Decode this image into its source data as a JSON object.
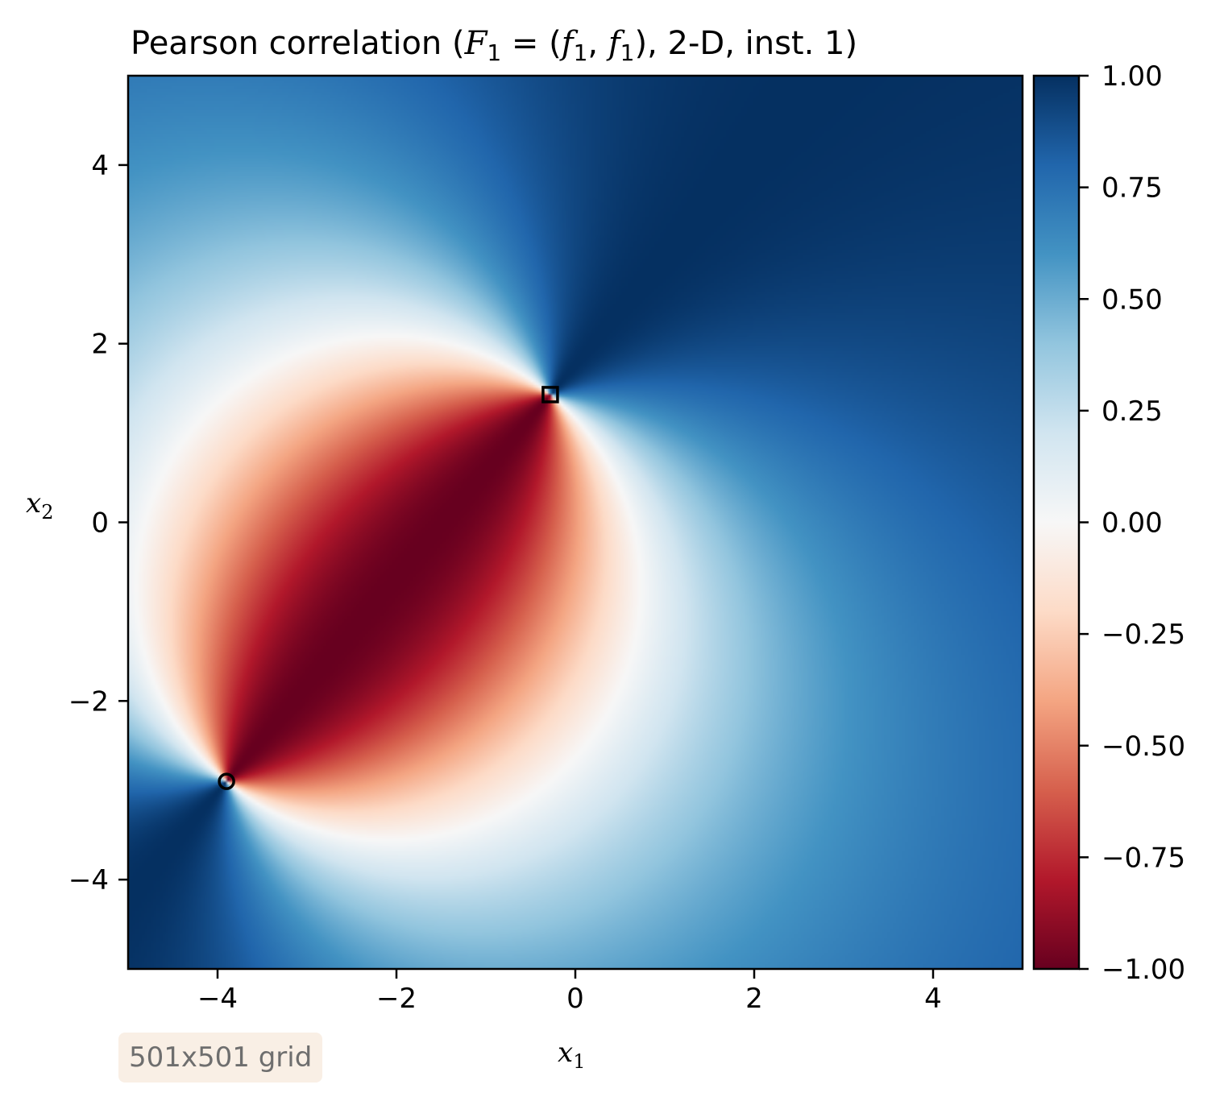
{
  "chart_data": {
    "type": "heatmap",
    "title": "Pearson correlation (F₁ = (f₁, f₁), 2-D, inst. 1)",
    "title_parts": {
      "prefix": "Pearson correlation (",
      "var_F": "F",
      "sub_1": "1",
      "equals": " = (",
      "var_f": "f",
      "comma": ", ",
      "close_paren": ")",
      "suffix": ", 2-D, inst. 1)"
    },
    "xlabel": "x",
    "xlabel_sub": "1",
    "ylabel": "x",
    "ylabel_sub": "2",
    "xlim": [
      -5,
      5
    ],
    "ylim": [
      -5,
      5
    ],
    "xticks": [
      {
        "value": -4,
        "label": "−4"
      },
      {
        "value": -2,
        "label": "−2"
      },
      {
        "value": 0,
        "label": "0"
      },
      {
        "value": 2,
        "label": "2"
      },
      {
        "value": 4,
        "label": "4"
      }
    ],
    "yticks": [
      {
        "value": -4,
        "label": "−4"
      },
      {
        "value": -2,
        "label": "−2"
      },
      {
        "value": 0,
        "label": "0"
      },
      {
        "value": 2,
        "label": "2"
      },
      {
        "value": 4,
        "label": "4"
      }
    ],
    "colormap": "RdBu",
    "color_stops": [
      "#67001f",
      "#b2182b",
      "#d6604d",
      "#f4a582",
      "#fddbc7",
      "#f7f7f7",
      "#d1e5f0",
      "#92c5de",
      "#4393c3",
      "#2166ac",
      "#053061"
    ],
    "colorbar": {
      "vmin": -1.0,
      "vmax": 1.0,
      "ticks": [
        {
          "value": 1.0,
          "label": "1.00"
        },
        {
          "value": 0.75,
          "label": "0.75"
        },
        {
          "value": 0.5,
          "label": "0.50"
        },
        {
          "value": 0.25,
          "label": "0.25"
        },
        {
          "value": 0.0,
          "label": "0.00"
        },
        {
          "value": -0.25,
          "label": "−0.25"
        },
        {
          "value": -0.5,
          "label": "−0.50"
        },
        {
          "value": -0.75,
          "label": "−0.75"
        },
        {
          "value": -1.0,
          "label": "−1.00"
        }
      ]
    },
    "markers": [
      {
        "name": "square",
        "x": -0.28,
        "y": 1.43,
        "color": "#000000"
      },
      {
        "name": "circle",
        "x": -3.9,
        "y": -2.9,
        "color": "#000000"
      }
    ],
    "grid": false,
    "annotation": "501x501 grid"
  }
}
